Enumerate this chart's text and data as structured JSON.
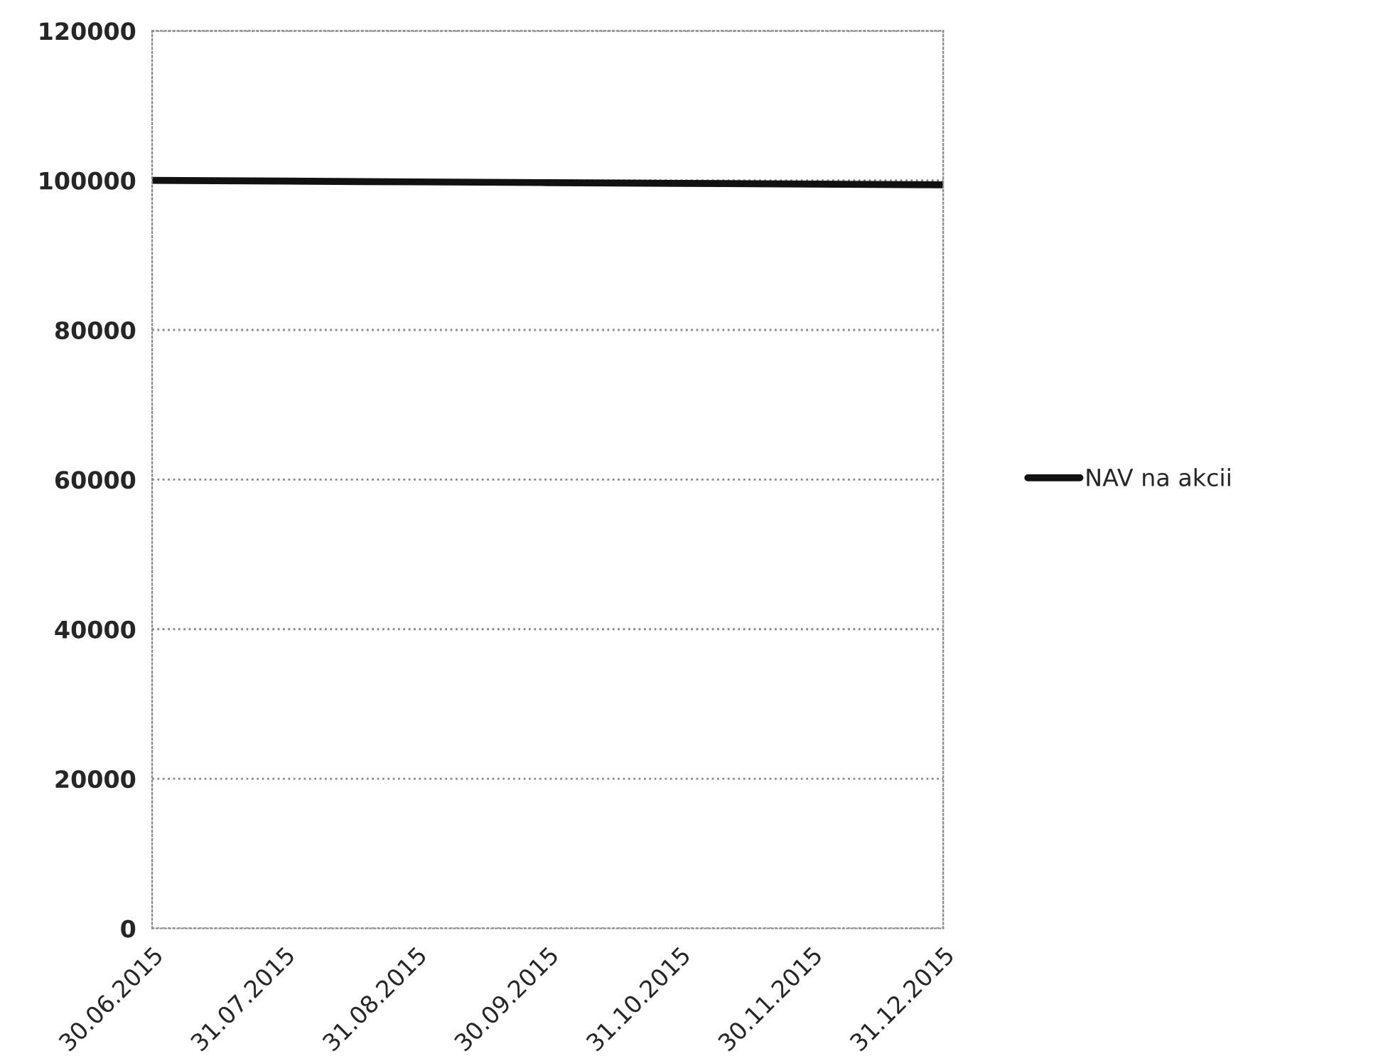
{
  "chart_data": {
    "type": "line",
    "categories": [
      "30.06.2015",
      "31.07.2015",
      "31.08.2015",
      "30.09.2015",
      "31.10.2015",
      "30.11.2015",
      "31.12.2015"
    ],
    "series": [
      {
        "name": "NAV na akcii",
        "color": "#111111",
        "values": [
          100000,
          99900,
          99800,
          99700,
          99600,
          99500,
          99400
        ]
      }
    ],
    "ylim": [
      0,
      120000
    ],
    "yticks": [
      0,
      20000,
      40000,
      60000,
      80000,
      100000,
      120000
    ],
    "grid": "y",
    "legend": "right",
    "marker": "none",
    "line_style": "solid"
  }
}
